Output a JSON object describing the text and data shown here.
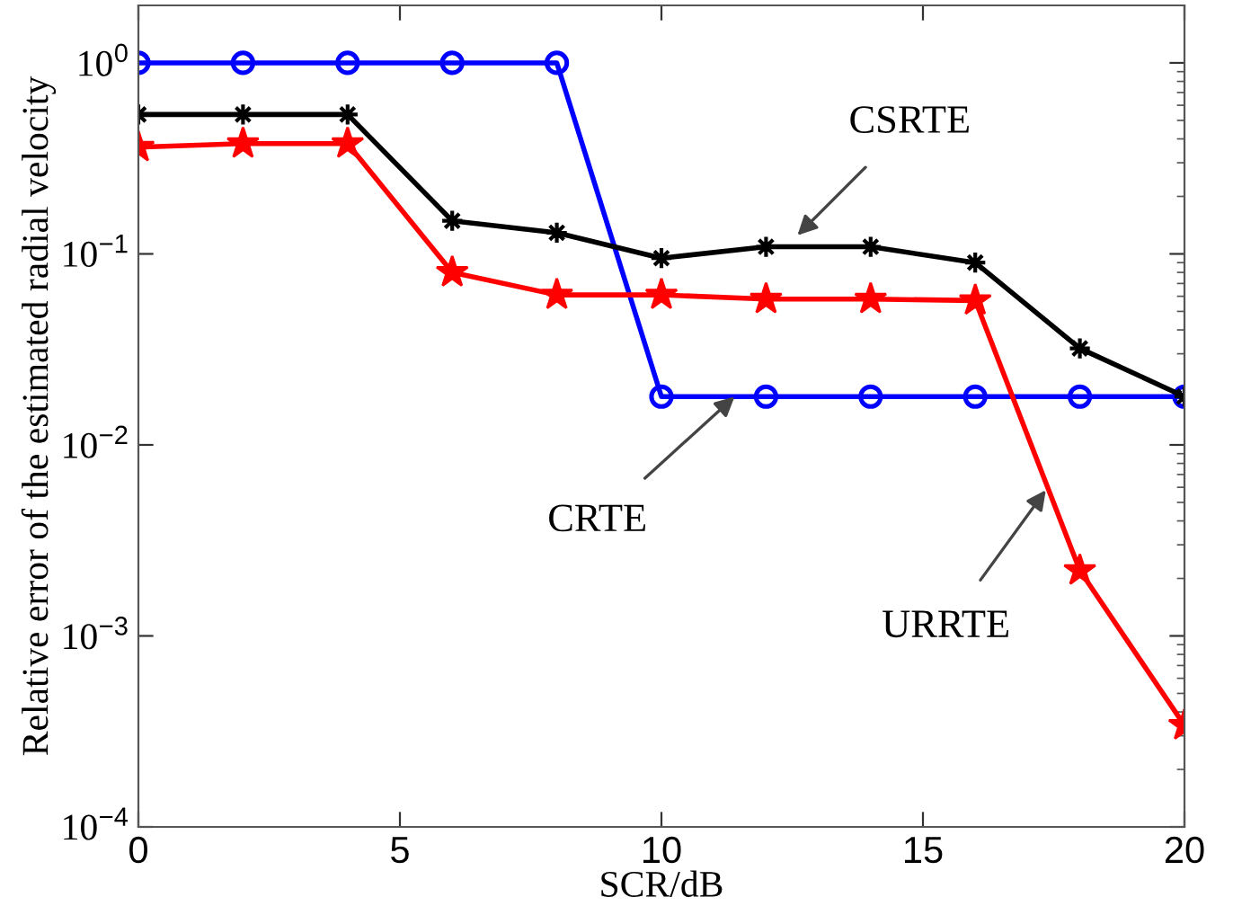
{
  "chart_data": {
    "type": "line",
    "xlabel": "SCR/dB",
    "ylabel": "Relative error of the estimated radial velocity",
    "log": "y",
    "grid": false,
    "line_style": "solid",
    "x": [
      0,
      2,
      4,
      6,
      8,
      10,
      12,
      14,
      16,
      18,
      20
    ],
    "xlim": [
      0,
      20
    ],
    "xticks": [
      0,
      5,
      10,
      15,
      20
    ],
    "ylim": [
      0.0001,
      2
    ],
    "yticks": [
      {
        "value": 0.0001,
        "label": "10$^{−4}$"
      },
      {
        "value": 0.001,
        "label": "10$^{−3}$"
      },
      {
        "value": 0.01,
        "label": "10$^{−2}$"
      },
      {
        "value": 0.1,
        "label": "10$^{−1}$"
      },
      {
        "value": 1,
        "label": "10$^{0}$"
      }
    ],
    "series": [
      {
        "color": "#0000ff",
        "marker": "circle",
        "values": [
          1,
          1,
          1,
          1,
          1,
          0.0179,
          0.0179,
          0.0179,
          0.0179,
          0.0179,
          0.0179
        ]
      },
      {
        "color": "#000000",
        "marker": "cross",
        "values": [
          0.537,
          0.537,
          0.537,
          0.149,
          0.129,
          0.095,
          0.109,
          0.109,
          0.09,
          0.032,
          0.0179
        ]
      },
      {
        "color": "#ff0000",
        "marker": "star",
        "values": [
          0.362,
          0.378,
          0.378,
          0.08,
          0.061,
          0.061,
          0.058,
          0.058,
          0.057,
          0.0022,
          0.00034
        ]
      }
    ],
    "annotations": [
      {
        "text": "CSRTE",
        "x": 12.6,
        "y": 0.125
      },
      {
        "text": "CRTE",
        "x": 11.4,
        "y": 0.0179
      },
      {
        "text": "URRTE",
        "x": 17.35,
        "y": 0.0058
      }
    ]
  }
}
